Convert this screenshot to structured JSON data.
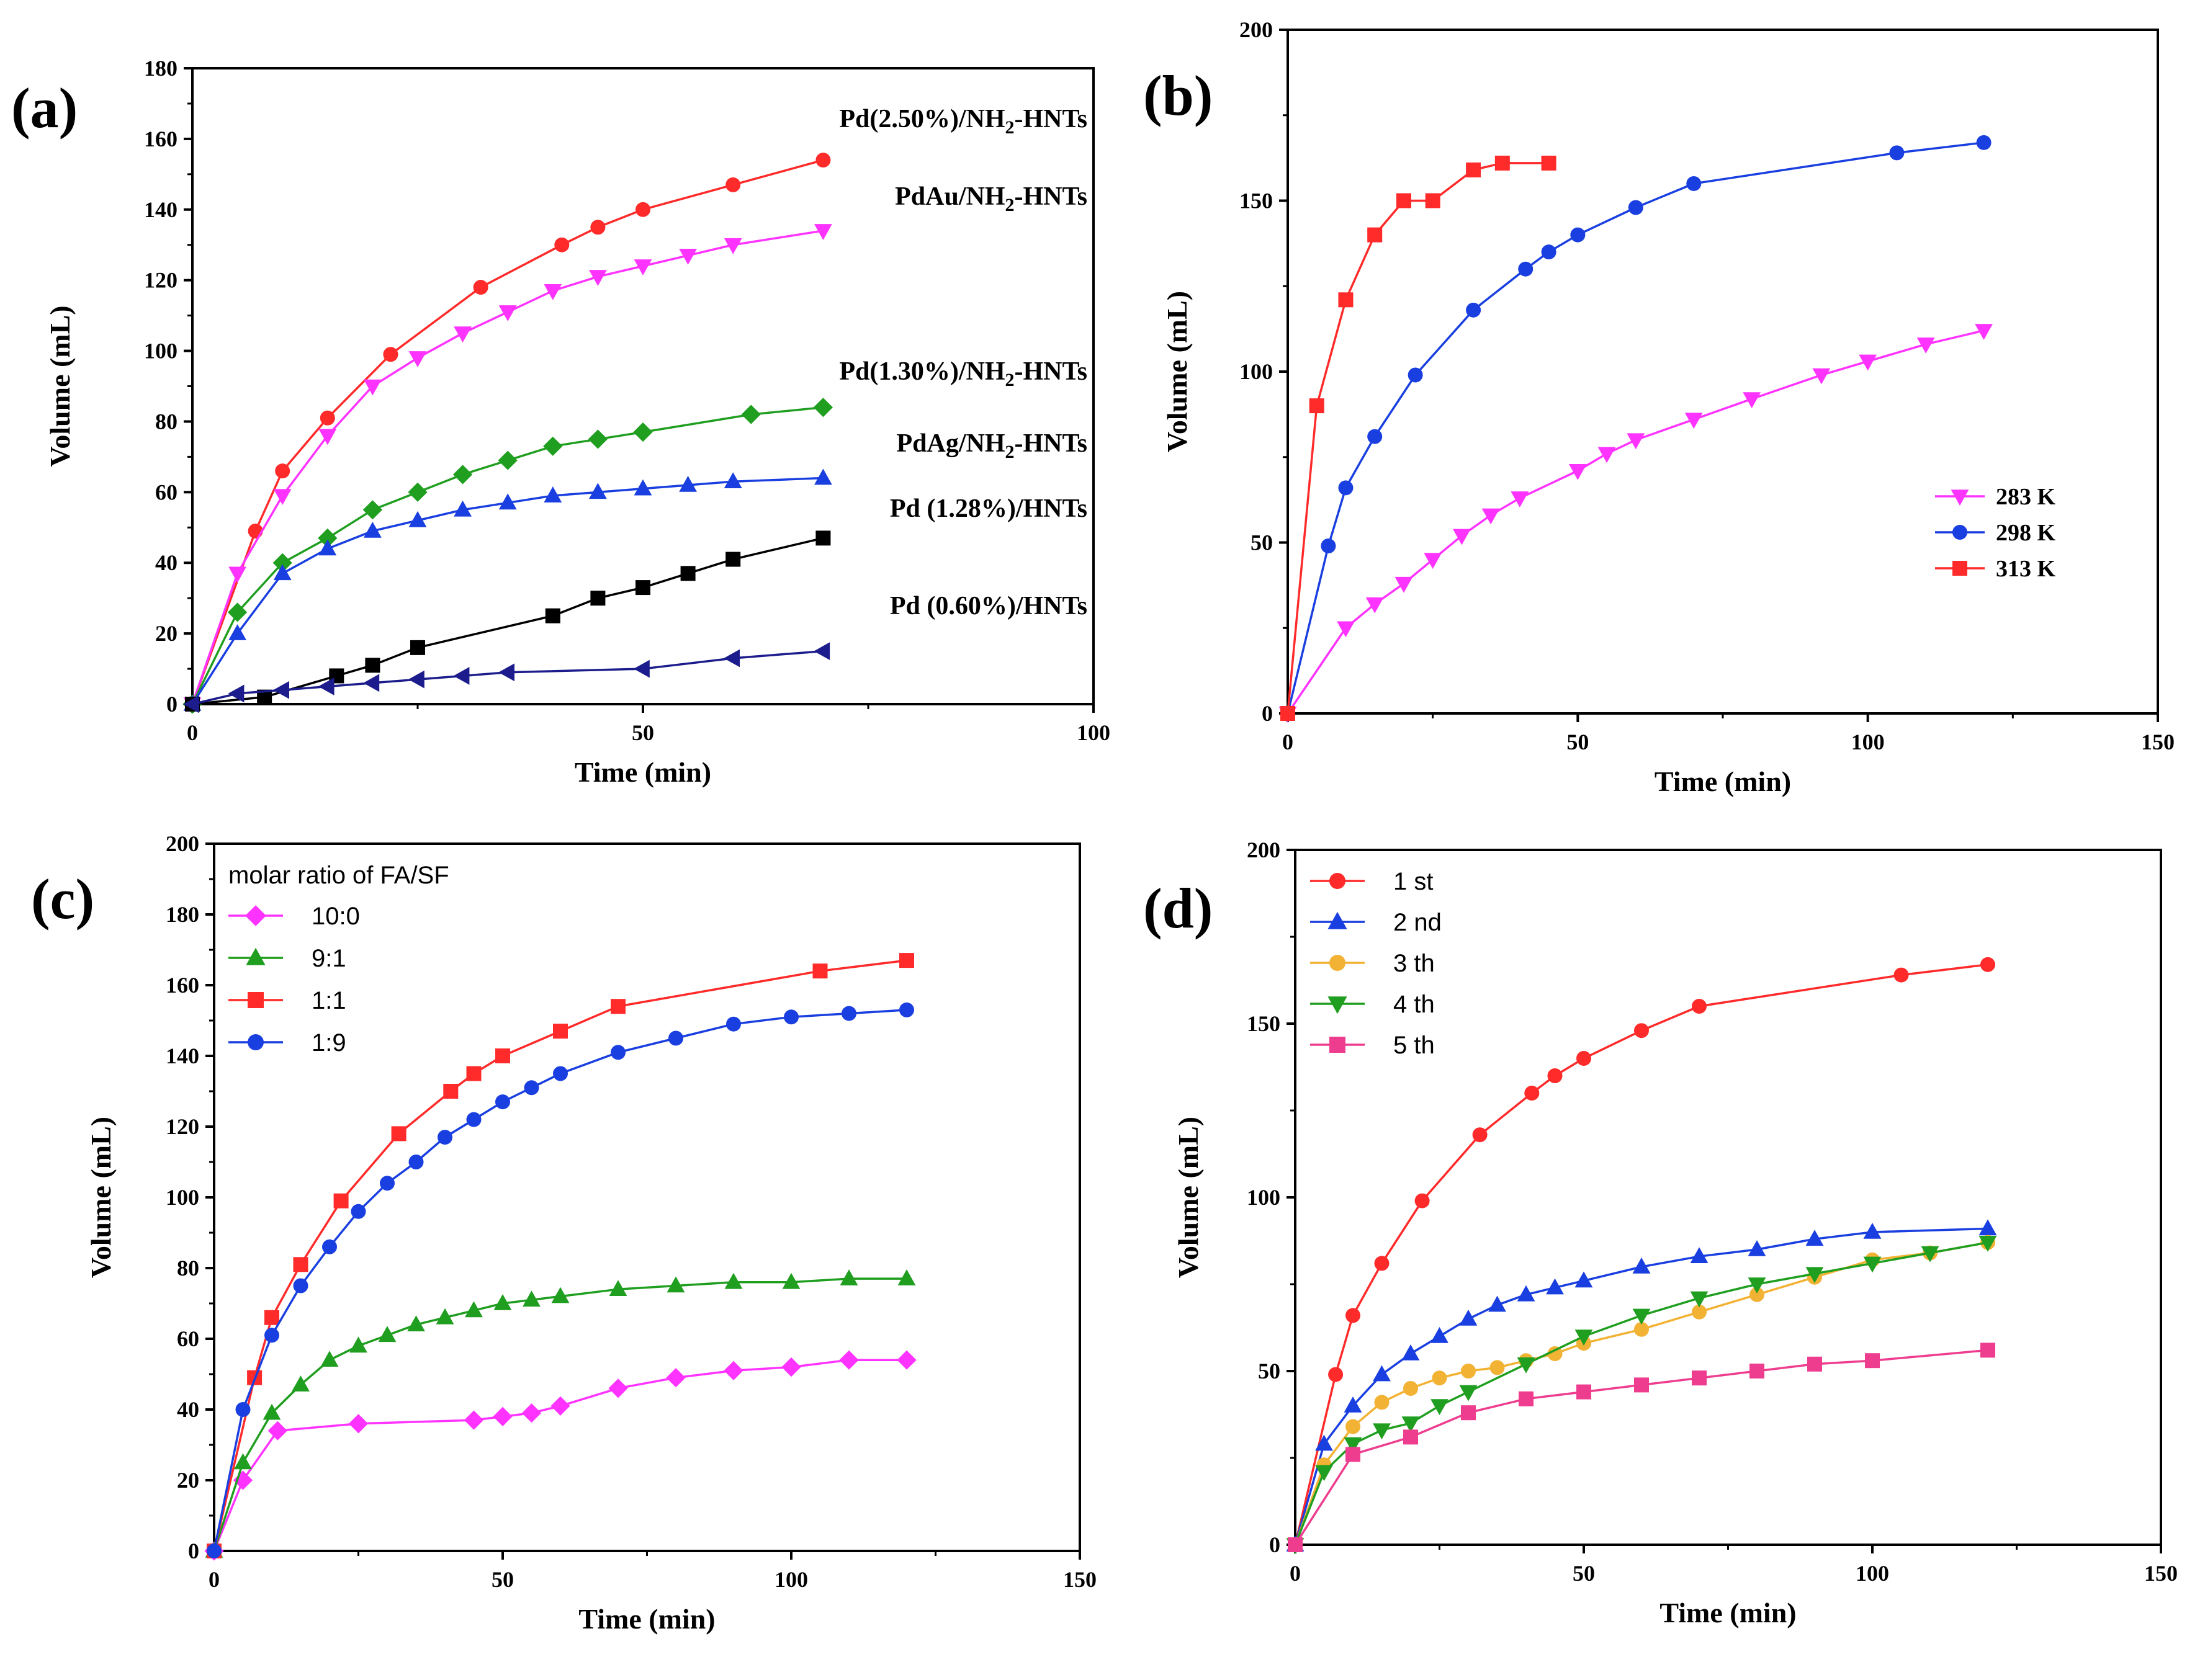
{
  "chart_data": [
    {
      "panel": "(a)",
      "type": "line",
      "xlabel": "Time (min)",
      "ylabel": "Volume (mL)",
      "xlim": [
        0,
        100
      ],
      "ylim": [
        0,
        180
      ],
      "xticks": [
        0,
        50,
        100
      ],
      "yticks": [
        0,
        20,
        40,
        60,
        80,
        100,
        120,
        140,
        160,
        180
      ],
      "legend_position": "annotations to the right of curves",
      "series": [
        {
          "name": "Pd(2.50%)/NH2-HNTs",
          "label_parts": [
            "Pd(2.50%)/NH",
            "2",
            "-HNTs"
          ],
          "color": "#ff2a2a",
          "marker": "circle",
          "x": [
            0,
            7,
            10,
            15,
            22,
            32,
            41,
            45,
            50,
            60,
            70
          ],
          "y": [
            0,
            49,
            66,
            81,
            99,
            118,
            130,
            135,
            140,
            147,
            154
          ]
        },
        {
          "name": "PdAu/NH2-HNTs",
          "label_parts": [
            "PdAu/NH",
            "2",
            "-HNTs"
          ],
          "color": "#ff33ff",
          "marker": "triangle-down",
          "x": [
            0,
            5,
            10,
            15,
            20,
            25,
            30,
            35,
            40,
            45,
            50,
            55,
            60,
            70
          ],
          "y": [
            0,
            37,
            59,
            76,
            90,
            98,
            105,
            111,
            117,
            121,
            124,
            127,
            130,
            134
          ]
        },
        {
          "name": "Pd(1.30%)/NH2-HNTs",
          "label_parts": [
            "Pd(1.30%)/NH",
            "2",
            "-HNTs"
          ],
          "color": "#1f9e1f",
          "marker": "diamond",
          "x": [
            0,
            5,
            10,
            15,
            20,
            25,
            30,
            35,
            40,
            45,
            50,
            62,
            70
          ],
          "y": [
            0,
            26,
            40,
            47,
            55,
            60,
            65,
            69,
            73,
            75,
            77,
            82,
            84
          ]
        },
        {
          "name": "PdAg/NH2-HNTs",
          "label_parts": [
            "PdAg/NH",
            "2",
            "-HNTs"
          ],
          "color": "#1a3fe0",
          "marker": "triangle-up",
          "x": [
            0,
            5,
            10,
            15,
            20,
            25,
            30,
            35,
            40,
            45,
            50,
            55,
            60,
            70
          ],
          "y": [
            0,
            20,
            37,
            44,
            49,
            52,
            55,
            57,
            59,
            60,
            61,
            62,
            63,
            64
          ]
        },
        {
          "name": "Pd (1.28%)/HNTs",
          "label_parts": [
            "Pd (1.28%)/HNTs",
            "",
            ""
          ],
          "color": "#000000",
          "marker": "square",
          "x": [
            0,
            8,
            16,
            20,
            25,
            40,
            45,
            50,
            55,
            60,
            70
          ],
          "y": [
            0,
            2,
            8,
            11,
            16,
            25,
            30,
            33,
            37,
            41,
            47
          ]
        },
        {
          "name": "Pd (0.60%)/HNTs",
          "label_parts": [
            "Pd (0.60%)/HNTs",
            "",
            ""
          ],
          "color": "#1c1c8c",
          "marker": "triangle-left",
          "x": [
            0,
            5,
            10,
            15,
            20,
            25,
            30,
            35,
            50,
            60,
            70
          ],
          "y": [
            0,
            3,
            4,
            5,
            6,
            7,
            8,
            9,
            10,
            13,
            15
          ]
        }
      ]
    },
    {
      "panel": "(b)",
      "type": "line",
      "xlabel": "Time (min)",
      "ylabel": "Volume (mL)",
      "xlim": [
        0,
        150
      ],
      "ylim": [
        0,
        200
      ],
      "xticks": [
        0,
        50,
        100,
        150
      ],
      "yticks": [
        0,
        50,
        100,
        150,
        200
      ],
      "legend_position": "right-middle",
      "series": [
        {
          "name": "283 K",
          "color": "#ff33ff",
          "marker": "triangle-down",
          "x": [
            0,
            10,
            15,
            20,
            25,
            30,
            35,
            40,
            50,
            55,
            60,
            70,
            80,
            92,
            100,
            110,
            120
          ],
          "y": [
            0,
            25,
            32,
            38,
            45,
            52,
            58,
            63,
            71,
            76,
            80,
            86,
            92,
            99,
            103,
            108,
            112
          ]
        },
        {
          "name": "298 K",
          "color": "#1a3fe0",
          "marker": "circle",
          "x": [
            0,
            7,
            10,
            15,
            22,
            32,
            41,
            45,
            50,
            60,
            70,
            105,
            120
          ],
          "y": [
            0,
            49,
            66,
            81,
            99,
            118,
            130,
            135,
            140,
            148,
            155,
            164,
            167
          ]
        },
        {
          "name": "313 K",
          "color": "#ff2a2a",
          "marker": "square",
          "x": [
            0,
            5,
            10,
            15,
            20,
            25,
            32,
            37,
            45
          ],
          "y": [
            0,
            90,
            121,
            140,
            150,
            150,
            159,
            161,
            161
          ]
        }
      ]
    },
    {
      "panel": "(c)",
      "type": "line",
      "xlabel": "Time (min)",
      "ylabel": "Volume (mL)",
      "xlim": [
        0,
        150
      ],
      "ylim": [
        0,
        200
      ],
      "xticks": [
        0,
        50,
        100,
        150
      ],
      "yticks": [
        0,
        20,
        40,
        60,
        80,
        100,
        120,
        140,
        160,
        180,
        200
      ],
      "legend_title": "molar ratio of FA/SF",
      "legend_position": "top-left",
      "series": [
        {
          "name": "10:0",
          "color": "#ff33ff",
          "marker": "diamond",
          "x": [
            0,
            5,
            11,
            25,
            45,
            50,
            55,
            60,
            70,
            80,
            90,
            100,
            110,
            120
          ],
          "y": [
            0,
            20,
            34,
            36,
            37,
            38,
            39,
            41,
            46,
            49,
            51,
            52,
            54,
            54
          ]
        },
        {
          "name": "9:1",
          "color": "#1f9e1f",
          "marker": "triangle-up",
          "x": [
            0,
            5,
            10,
            15,
            20,
            25,
            30,
            35,
            40,
            45,
            50,
            55,
            60,
            70,
            80,
            90,
            100,
            110,
            120
          ],
          "y": [
            0,
            25,
            39,
            47,
            54,
            58,
            61,
            64,
            66,
            68,
            70,
            71,
            72,
            74,
            75,
            76,
            76,
            77,
            77
          ]
        },
        {
          "name": "1:1",
          "color": "#ff2a2a",
          "marker": "square",
          "x": [
            0,
            7,
            10,
            15,
            22,
            32,
            41,
            45,
            50,
            60,
            70,
            105,
            120
          ],
          "y": [
            0,
            49,
            66,
            81,
            99,
            118,
            130,
            135,
            140,
            147,
            154,
            164,
            167
          ]
        },
        {
          "name": "1:9",
          "color": "#1a3fe0",
          "marker": "circle",
          "x": [
            0,
            5,
            10,
            15,
            20,
            25,
            30,
            35,
            40,
            45,
            50,
            55,
            60,
            70,
            80,
            90,
            100,
            110,
            120
          ],
          "y": [
            0,
            40,
            61,
            75,
            86,
            96,
            104,
            110,
            117,
            122,
            127,
            131,
            135,
            141,
            145,
            149,
            151,
            152,
            153
          ]
        }
      ]
    },
    {
      "panel": "(d)",
      "type": "line",
      "xlabel": "Time (min)",
      "ylabel": "Volume (mL)",
      "xlim": [
        0,
        150
      ],
      "ylim": [
        0,
        200
      ],
      "xticks": [
        0,
        50,
        100,
        150
      ],
      "yticks": [
        0,
        50,
        100,
        150,
        200
      ],
      "legend_position": "top-left",
      "series": [
        {
          "name": "1 st",
          "color": "#ff2a2a",
          "marker": "circle",
          "x": [
            0,
            7,
            10,
            15,
            22,
            32,
            41,
            45,
            50,
            60,
            70,
            105,
            120
          ],
          "y": [
            0,
            49,
            66,
            81,
            99,
            118,
            130,
            135,
            140,
            148,
            155,
            164,
            167
          ]
        },
        {
          "name": "2 nd",
          "color": "#1a3fe0",
          "marker": "triangle-up",
          "x": [
            0,
            5,
            10,
            15,
            20,
            25,
            30,
            35,
            40,
            45,
            50,
            60,
            70,
            80,
            90,
            100,
            120
          ],
          "y": [
            0,
            29,
            40,
            49,
            55,
            60,
            65,
            69,
            72,
            74,
            76,
            80,
            83,
            85,
            88,
            90,
            91
          ]
        },
        {
          "name": "3 th",
          "color": "#f2b233",
          "marker": "circle",
          "x": [
            0,
            5,
            10,
            15,
            20,
            25,
            30,
            35,
            40,
            45,
            50,
            60,
            70,
            80,
            90,
            100,
            110,
            120
          ],
          "y": [
            0,
            23,
            34,
            41,
            45,
            48,
            50,
            51,
            53,
            55,
            58,
            62,
            67,
            72,
            77,
            82,
            84,
            87
          ]
        },
        {
          "name": "4 th",
          "color": "#1f9e1f",
          "marker": "triangle-down",
          "x": [
            0,
            5,
            10,
            15,
            20,
            25,
            30,
            40,
            50,
            60,
            70,
            80,
            90,
            100,
            110,
            120
          ],
          "y": [
            0,
            21,
            29,
            33,
            35,
            40,
            44,
            52,
            60,
            66,
            71,
            75,
            78,
            81,
            84,
            87
          ]
        },
        {
          "name": "5 th",
          "color": "#ee3d8f",
          "marker": "square",
          "x": [
            0,
            10,
            20,
            30,
            40,
            50,
            60,
            70,
            80,
            90,
            100,
            120
          ],
          "y": [
            0,
            26,
            31,
            38,
            42,
            44,
            46,
            48,
            50,
            52,
            53,
            56
          ]
        }
      ]
    }
  ]
}
